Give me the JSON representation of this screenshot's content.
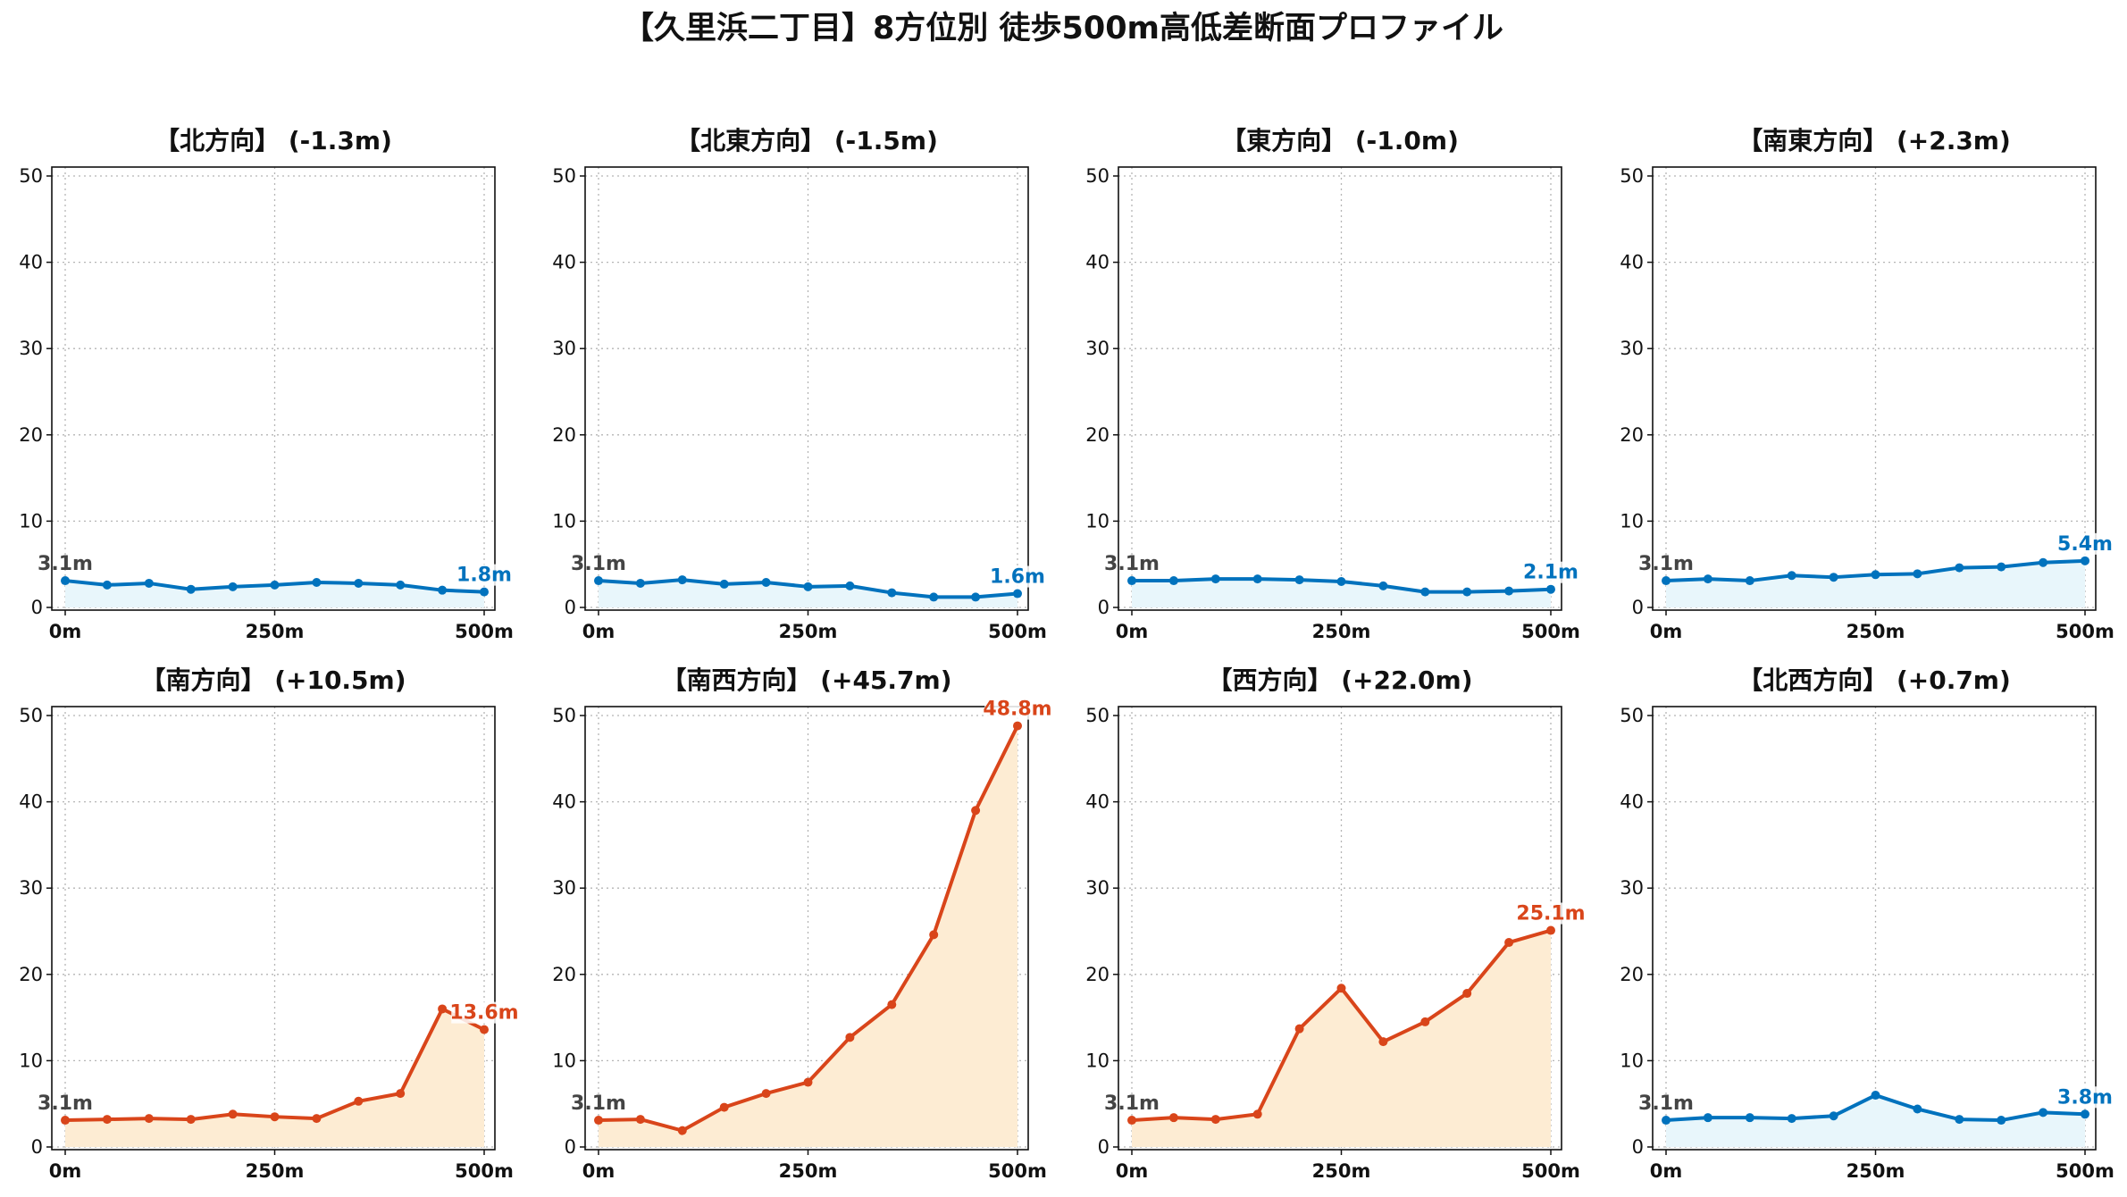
{
  "title": "【久里浜二丁目】8方位別 徒歩500m高低差断面プロファイル",
  "colors": {
    "descent": "#0072bd",
    "descent_fill": "#e8f6fb",
    "ascent": "#d9451a",
    "ascent_fill": "#fdecd3"
  },
  "chart_data": [
    {
      "type": "area",
      "title": "【北方向】 (-1.3m)",
      "trend": "down",
      "x": [
        0,
        50,
        100,
        150,
        200,
        250,
        300,
        350,
        400,
        450,
        500
      ],
      "y": [
        3.1,
        2.6,
        2.8,
        2.1,
        2.4,
        2.6,
        2.9,
        2.8,
        2.6,
        2.0,
        1.8
      ],
      "start_label": "3.1m",
      "end_label": "1.8m",
      "xticks": [
        "0m",
        "250m",
        "500m"
      ],
      "yticks": [
        "0",
        "10",
        "20",
        "30",
        "40",
        "50"
      ],
      "xlim": [
        0,
        500
      ],
      "ylim": [
        0,
        50
      ],
      "grid": true
    },
    {
      "type": "area",
      "title": "【北東方向】 (-1.5m)",
      "trend": "down",
      "x": [
        0,
        50,
        100,
        150,
        200,
        250,
        300,
        350,
        400,
        450,
        500
      ],
      "y": [
        3.1,
        2.8,
        3.2,
        2.7,
        2.9,
        2.4,
        2.5,
        1.7,
        1.2,
        1.2,
        1.6
      ],
      "start_label": "3.1m",
      "end_label": "1.6m",
      "xticks": [
        "0m",
        "250m",
        "500m"
      ],
      "yticks": [
        "0",
        "10",
        "20",
        "30",
        "40",
        "50"
      ],
      "xlim": [
        0,
        500
      ],
      "ylim": [
        0,
        50
      ],
      "grid": true
    },
    {
      "type": "area",
      "title": "【東方向】 (-1.0m)",
      "trend": "down",
      "x": [
        0,
        50,
        100,
        150,
        200,
        250,
        300,
        350,
        400,
        450,
        500
      ],
      "y": [
        3.1,
        3.1,
        3.3,
        3.3,
        3.2,
        3.0,
        2.5,
        1.8,
        1.8,
        1.9,
        2.1
      ],
      "start_label": "3.1m",
      "end_label": "2.1m",
      "xticks": [
        "0m",
        "250m",
        "500m"
      ],
      "yticks": [
        "0",
        "10",
        "20",
        "30",
        "40",
        "50"
      ],
      "xlim": [
        0,
        500
      ],
      "ylim": [
        0,
        50
      ],
      "grid": true
    },
    {
      "type": "area",
      "title": "【南東方向】 (+2.3m)",
      "trend": "down",
      "x": [
        0,
        50,
        100,
        150,
        200,
        250,
        300,
        350,
        400,
        450,
        500
      ],
      "y": [
        3.1,
        3.3,
        3.1,
        3.7,
        3.5,
        3.8,
        3.9,
        4.6,
        4.7,
        5.2,
        5.4
      ],
      "start_label": "3.1m",
      "end_label": "5.4m",
      "xticks": [
        "0m",
        "250m",
        "500m"
      ],
      "yticks": [
        "0",
        "10",
        "20",
        "30",
        "40",
        "50"
      ],
      "xlim": [
        0,
        500
      ],
      "ylim": [
        0,
        50
      ],
      "grid": true
    },
    {
      "type": "area",
      "title": "【南方向】 (+10.5m)",
      "trend": "up",
      "x": [
        0,
        50,
        100,
        150,
        200,
        250,
        300,
        350,
        400,
        450,
        500
      ],
      "y": [
        3.1,
        3.2,
        3.3,
        3.2,
        3.8,
        3.5,
        3.3,
        5.3,
        6.2,
        16.0,
        13.6
      ],
      "start_label": "3.1m",
      "end_label": "13.6m",
      "xticks": [
        "0m",
        "250m",
        "500m"
      ],
      "yticks": [
        "0",
        "10",
        "20",
        "30",
        "40",
        "50"
      ],
      "xlim": [
        0,
        500
      ],
      "ylim": [
        0,
        50
      ],
      "grid": true
    },
    {
      "type": "area",
      "title": "【南西方向】 (+45.7m)",
      "trend": "up",
      "x": [
        0,
        50,
        100,
        150,
        200,
        250,
        300,
        350,
        400,
        450,
        500
      ],
      "y": [
        3.1,
        3.2,
        1.9,
        4.6,
        6.2,
        7.5,
        12.7,
        16.5,
        24.6,
        39.0,
        48.8
      ],
      "start_label": "3.1m",
      "end_label": "48.8m",
      "xticks": [
        "0m",
        "250m",
        "500m"
      ],
      "yticks": [
        "0",
        "10",
        "20",
        "30",
        "40",
        "50"
      ],
      "xlim": [
        0,
        500
      ],
      "ylim": [
        0,
        50
      ],
      "grid": true
    },
    {
      "type": "area",
      "title": "【西方向】 (+22.0m)",
      "trend": "up",
      "x": [
        0,
        50,
        100,
        150,
        200,
        250,
        300,
        350,
        400,
        450,
        500
      ],
      "y": [
        3.1,
        3.4,
        3.2,
        3.8,
        13.7,
        18.4,
        12.2,
        14.5,
        17.8,
        23.7,
        25.1
      ],
      "start_label": "3.1m",
      "end_label": "25.1m",
      "xticks": [
        "0m",
        "250m",
        "500m"
      ],
      "yticks": [
        "0",
        "10",
        "20",
        "30",
        "40",
        "50"
      ],
      "xlim": [
        0,
        500
      ],
      "ylim": [
        0,
        50
      ],
      "grid": true
    },
    {
      "type": "area",
      "title": "【北西方向】 (+0.7m)",
      "trend": "down",
      "x": [
        0,
        50,
        100,
        150,
        200,
        250,
        300,
        350,
        400,
        450,
        500
      ],
      "y": [
        3.1,
        3.4,
        3.4,
        3.3,
        3.6,
        6.0,
        4.4,
        3.2,
        3.1,
        4.0,
        3.8
      ],
      "start_label": "3.1m",
      "end_label": "3.8m",
      "xticks": [
        "0m",
        "250m",
        "500m"
      ],
      "yticks": [
        "0",
        "10",
        "20",
        "30",
        "40",
        "50"
      ],
      "xlim": [
        0,
        500
      ],
      "ylim": [
        0,
        50
      ],
      "grid": true
    }
  ]
}
